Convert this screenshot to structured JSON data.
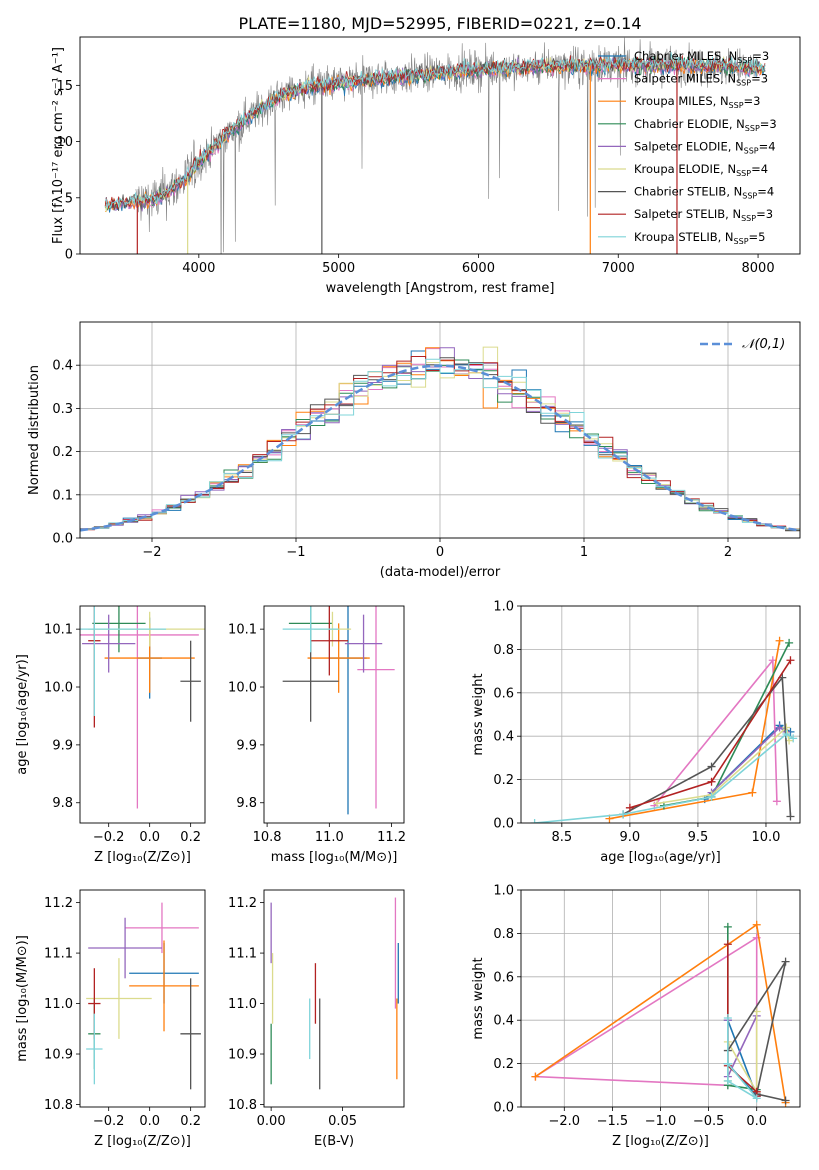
{
  "page": {
    "title": "PLATE=1180, MJD=52995, FIBERID=0221, z=0.14",
    "colors": {
      "Chabrier MILES": "#1f77b4",
      "Salpeter MILES": "#e377c2",
      "Kroupa MILES": "#ff7f0e",
      "Chabrier ELODIE": "#2e8b57",
      "Salpeter ELODIE": "#9467bd",
      "Kroupa ELODIE": "#dbdb8d",
      "Chabrier STELIB": "#555555",
      "Salpeter STELIB": "#b22222",
      "Kroupa STELIB": "#7fd4d9",
      "data": "#808080",
      "normal": "#5b8fd8"
    }
  },
  "chart_data": [
    {
      "id": "spectrum",
      "type": "line",
      "xlabel": "wavelength [Angstrom, rest frame]",
      "ylabel": "Flux [fλ10⁻¹⁷ erg cm⁻² s⁻¹ A⁻¹]",
      "xlim": [
        3150,
        8300
      ],
      "ylim": [
        0,
        19.3
      ],
      "xticks": [
        "4000",
        "5000",
        "6000",
        "7000",
        "8000"
      ],
      "yticks": [
        "0",
        "5",
        "10",
        "15"
      ],
      "legend": [
        {
          "name": "Chabrier MILES",
          "n_ssp": "=3"
        },
        {
          "name": "Salpeter MILES",
          "n_ssp": "=3"
        },
        {
          "name": "Kroupa MILES",
          "n_ssp": "=3"
        },
        {
          "name": "Chabrier ELODIE",
          "n_ssp": "=3"
        },
        {
          "name": "Salpeter ELODIE",
          "n_ssp": "=4"
        },
        {
          "name": "Kroupa ELODIE",
          "n_ssp": "=4"
        },
        {
          "name": "Chabrier STELIB",
          "n_ssp": "=4"
        },
        {
          "name": "Salpeter STELIB",
          "n_ssp": "=3"
        },
        {
          "name": "Kroupa STELIB",
          "n_ssp": "=5"
        }
      ],
      "legend_position": "right",
      "continuum_nodes": [
        [
          3350,
          4.3
        ],
        [
          3500,
          4.6
        ],
        [
          3700,
          4.9
        ],
        [
          3900,
          6.6
        ],
        [
          4000,
          8.2
        ],
        [
          4200,
          10.6
        ],
        [
          4400,
          12.6
        ],
        [
          4600,
          14.2
        ],
        [
          4800,
          14.9
        ],
        [
          5000,
          15.2
        ],
        [
          5300,
          15.6
        ],
        [
          5600,
          16.0
        ],
        [
          6000,
          16.4
        ],
        [
          6500,
          16.7
        ],
        [
          7000,
          16.8
        ],
        [
          7500,
          16.8
        ],
        [
          7800,
          16.7
        ],
        [
          8000,
          16.5
        ]
      ],
      "model_range": [
        3330,
        8050
      ],
      "data_range": [
        3550,
        8000
      ],
      "noise_level": 1.2
    },
    {
      "id": "residuals",
      "type": "histogram",
      "xlabel": "(data-model)/error",
      "ylabel": "Normed distribution",
      "xlim": [
        -2.5,
        2.5
      ],
      "ylim": [
        0,
        0.5
      ],
      "xticks": [
        "−2",
        "−1",
        "0",
        "1",
        "2"
      ],
      "yticks": [
        "0.0",
        "0.1",
        "0.2",
        "0.3",
        "0.4"
      ],
      "bin_width": 0.1,
      "legend": [
        "𝒩(0,1)"
      ],
      "legend_position": "upper right",
      "grid": true
    },
    {
      "id": "age-vs-Z",
      "type": "errorbar",
      "xlabel": "Z [log₁₀(Z/Z⊙)]",
      "ylabel": "age  [log₁₀(age/yr)]",
      "xlim": [
        -0.34,
        0.27
      ],
      "ylim": [
        9.765,
        10.14
      ],
      "xticks": [
        "−0.2",
        "0.0",
        "0.2"
      ],
      "yticks": [
        "9.8",
        "9.9",
        "10.0",
        "10.1"
      ],
      "points": [
        {
          "model": "Chabrier MILES",
          "x": 0.0,
          "xerr": 0.06,
          "y": 10.05,
          "yerr": 0.07
        },
        {
          "model": "Salpeter MILES",
          "x": -0.06,
          "xerr": 0.3,
          "y": 10.09,
          "yerr": 0.3
        },
        {
          "model": "Kroupa MILES",
          "x": 0.0,
          "xerr": 0.22,
          "y": 10.05,
          "yerr": 0.06
        },
        {
          "model": "Chabrier ELODIE",
          "x": -0.15,
          "xerr": 0.13,
          "y": 10.11,
          "yerr": 0.05
        },
        {
          "model": "Salpeter ELODIE",
          "x": -0.2,
          "xerr": 0.13,
          "y": 10.075,
          "yerr": 0.05
        },
        {
          "model": "Kroupa ELODIE",
          "x": 0.0,
          "xerr": 0.3,
          "y": 10.1,
          "yerr": 0.03
        },
        {
          "model": "Chabrier STELIB",
          "x": 0.2,
          "xerr": 0.05,
          "y": 10.01,
          "yerr": 0.07
        },
        {
          "model": "Salpeter STELIB",
          "x": -0.27,
          "xerr": 0.03,
          "y": 10.08,
          "yerr": 0.15
        },
        {
          "model": "Kroupa STELIB",
          "x": -0.27,
          "xerr": 0.35,
          "y": 10.1,
          "yerr": 0.15
        }
      ]
    },
    {
      "id": "age-vs-mass",
      "type": "errorbar",
      "xlabel": "mass [log₁₀(M/M⊙)]",
      "xlim": [
        10.79,
        11.24
      ],
      "ylim": [
        9.765,
        10.14
      ],
      "xticks": [
        "10.8",
        "11.0",
        "11.2"
      ],
      "yticks": [
        "9.8",
        "9.9",
        "10.0",
        "10.1"
      ],
      "points": [
        {
          "model": "Chabrier MILES",
          "x": 11.06,
          "xerr": 0.06,
          "y": 10.05,
          "yerr": 0.27
        },
        {
          "model": "Salpeter MILES",
          "x": 11.15,
          "xerr": 0.06,
          "y": 10.03,
          "yerr": 0.24
        },
        {
          "model": "Kroupa MILES",
          "x": 11.03,
          "xerr": 0.1,
          "y": 10.05,
          "yerr": 0.06
        },
        {
          "model": "Chabrier ELODIE",
          "x": 10.94,
          "xerr": 0.07,
          "y": 10.11,
          "yerr": 0.05
        },
        {
          "model": "Salpeter ELODIE",
          "x": 11.11,
          "xerr": 0.06,
          "y": 10.075,
          "yerr": 0.05
        },
        {
          "model": "Kroupa ELODIE",
          "x": 11.01,
          "xerr": 0.06,
          "y": 10.1,
          "yerr": 0.03
        },
        {
          "model": "Chabrier STELIB",
          "x": 10.94,
          "xerr": 0.09,
          "y": 10.01,
          "yerr": 0.07
        },
        {
          "model": "Salpeter STELIB",
          "x": 11.0,
          "xerr": 0.06,
          "y": 10.08,
          "yerr": 0.06
        },
        {
          "model": "Kroupa STELIB",
          "x": 10.94,
          "xerr": 0.09,
          "y": 10.1,
          "yerr": 0.04
        }
      ]
    },
    {
      "id": "weight-vs-age",
      "type": "line",
      "xlabel": "age  [log₁₀(age/yr)]",
      "ylabel": "mass weight",
      "xlim": [
        8.2,
        10.25
      ],
      "ylim": [
        0,
        1.0
      ],
      "xticks": [
        "8.5",
        "9.0",
        "9.5",
        "10.0"
      ],
      "yticks": [
        "0.0",
        "0.2",
        "0.4",
        "0.6",
        "0.8",
        "1.0"
      ],
      "grid": true,
      "series": [
        {
          "model": "Chabrier MILES",
          "x": [
            9.55,
            10.1,
            10.18
          ],
          "y": [
            0.11,
            0.45,
            0.42
          ]
        },
        {
          "model": "Salpeter MILES",
          "x": [
            9.18,
            10.05,
            10.08
          ],
          "y": [
            0.08,
            0.75,
            0.1
          ]
        },
        {
          "model": "Kroupa MILES",
          "x": [
            8.85,
            9.9,
            10.1
          ],
          "y": [
            0.02,
            0.14,
            0.84
          ]
        },
        {
          "model": "Chabrier ELODIE",
          "x": [
            9.25,
            9.6,
            10.17
          ],
          "y": [
            0.08,
            0.12,
            0.83
          ]
        },
        {
          "model": "Salpeter ELODIE",
          "x": [
            9.6,
            10.1,
            10.15
          ],
          "y": [
            0.14,
            0.44,
            0.42
          ]
        },
        {
          "model": "Kroupa ELODIE",
          "x": [
            9.2,
            9.6,
            10.15,
            10.17
          ],
          "y": [
            0.09,
            0.13,
            0.44,
            0.38
          ]
        },
        {
          "model": "Chabrier STELIB",
          "x": [
            8.95,
            9.6,
            10.12,
            10.18
          ],
          "y": [
            0.04,
            0.26,
            0.67,
            0.03
          ]
        },
        {
          "model": "Salpeter STELIB",
          "x": [
            9.0,
            9.6,
            10.18
          ],
          "y": [
            0.07,
            0.19,
            0.75
          ]
        },
        {
          "model": "Kroupa STELIB",
          "x": [
            8.3,
            8.95,
            9.6,
            10.15,
            10.2
          ],
          "y": [
            0.0,
            0.04,
            0.12,
            0.41,
            0.39
          ]
        }
      ]
    },
    {
      "id": "mass-vs-Z",
      "type": "errorbar",
      "xlabel": "Z [log₁₀(Z/Z⊙)]",
      "ylabel": "mass [log₁₀(M/M⊙)]",
      "xlim": [
        -0.34,
        0.27
      ],
      "ylim": [
        10.795,
        11.225
      ],
      "xticks": [
        "−0.2",
        "0.0",
        "0.2"
      ],
      "yticks": [
        "10.8",
        "10.9",
        "11.0",
        "11.1",
        "11.2"
      ],
      "points": [
        {
          "model": "Chabrier MILES",
          "x": 0.07,
          "xerr": 0.17,
          "y": 11.06,
          "yerr": 0.06
        },
        {
          "model": "Salpeter MILES",
          "x": 0.06,
          "xerr": 0.18,
          "y": 11.15,
          "yerr": 0.05
        },
        {
          "model": "Kroupa MILES",
          "x": 0.07,
          "xerr": 0.17,
          "y": 11.035,
          "yerr": 0.09
        },
        {
          "model": "Chabrier ELODIE",
          "x": -0.27,
          "xerr": 0.03,
          "y": 10.94,
          "yerr": 0.07
        },
        {
          "model": "Salpeter ELODIE",
          "x": -0.12,
          "xerr": 0.18,
          "y": 11.11,
          "yerr": 0.06
        },
        {
          "model": "Kroupa ELODIE",
          "x": -0.15,
          "xerr": 0.16,
          "y": 11.01,
          "yerr": 0.08
        },
        {
          "model": "Chabrier STELIB",
          "x": 0.2,
          "xerr": 0.05,
          "y": 10.94,
          "yerr": 0.11
        },
        {
          "model": "Salpeter STELIB",
          "x": -0.27,
          "xerr": 0.03,
          "y": 11.0,
          "yerr": 0.07
        },
        {
          "model": "Kroupa STELIB",
          "x": -0.27,
          "xerr": 0.04,
          "y": 10.91,
          "yerr": 0.07
        }
      ]
    },
    {
      "id": "mass-vs-ebv",
      "type": "errorbar",
      "xlabel": "E(B-V)",
      "xlim": [
        -0.005,
        0.093
      ],
      "ylim": [
        10.795,
        11.225
      ],
      "xticks": [
        "0.00",
        "0.05"
      ],
      "yticks": [
        "10.8",
        "10.9",
        "11.0",
        "11.1",
        "11.2"
      ],
      "points": [
        {
          "model": "Chabrier MILES",
          "x": 0.089,
          "y": 11.06,
          "yerr": 0.06
        },
        {
          "model": "Salpeter MILES",
          "x": 0.087,
          "y": 11.1,
          "yerr": 0.11
        },
        {
          "model": "Kroupa MILES",
          "x": 0.088,
          "y": 10.93,
          "yerr": 0.08
        },
        {
          "model": "Chabrier ELODIE",
          "x": 0.0,
          "y": 10.9,
          "yerr": 0.06
        },
        {
          "model": "Salpeter ELODIE",
          "x": 0.0,
          "y": 11.14,
          "yerr": 0.06
        },
        {
          "model": "Kroupa ELODIE",
          "x": 0.001,
          "y": 11.03,
          "yerr": 0.07
        },
        {
          "model": "Chabrier STELIB",
          "x": 0.034,
          "y": 10.92,
          "yerr": 0.09
        },
        {
          "model": "Salpeter STELIB",
          "x": 0.031,
          "y": 11.02,
          "yerr": 0.06
        },
        {
          "model": "Kroupa STELIB",
          "x": 0.027,
          "y": 10.95,
          "yerr": 0.06
        }
      ]
    },
    {
      "id": "weight-vs-Z",
      "type": "line",
      "xlabel": "Z [log₁₀(Z/Z⊙)]",
      "ylabel": "mass weight",
      "xlim": [
        -2.45,
        0.45
      ],
      "ylim": [
        0,
        1.0
      ],
      "xticks": [
        "−2.0",
        "−1.5",
        "−1.0",
        "−0.5",
        "0.0"
      ],
      "yticks": [
        "0.0",
        "0.2",
        "0.4",
        "0.6",
        "0.8",
        "1.0"
      ],
      "grid": true,
      "series": [
        {
          "model": "Chabrier MILES",
          "x": [
            -0.3,
            0.0,
            -0.3
          ],
          "y": [
            0.4,
            0.05,
            0.2
          ]
        },
        {
          "model": "Salpeter MILES",
          "x": [
            -0.3,
            -2.3,
            0.0,
            0.0
          ],
          "y": [
            0.1,
            0.14,
            0.78,
            0.05
          ]
        },
        {
          "model": "Kroupa MILES",
          "x": [
            -2.3,
            0.0,
            0.3
          ],
          "y": [
            0.14,
            0.84,
            0.02
          ]
        },
        {
          "model": "Chabrier ELODIE",
          "x": [
            -0.3,
            -0.3,
            0.0
          ],
          "y": [
            0.83,
            0.1,
            0.08
          ]
        },
        {
          "model": "Salpeter ELODIE",
          "x": [
            -0.3,
            -0.3,
            0.0
          ],
          "y": [
            0.4,
            0.14,
            0.42
          ]
        },
        {
          "model": "Kroupa ELODIE",
          "x": [
            0.0,
            0.0,
            -0.3,
            -0.3
          ],
          "y": [
            0.44,
            0.07,
            0.3,
            0.12
          ]
        },
        {
          "model": "Chabrier STELIB",
          "x": [
            0.3,
            0.0,
            0.3,
            -0.3
          ],
          "y": [
            0.03,
            0.06,
            0.67,
            0.26
          ]
        },
        {
          "model": "Salpeter STELIB",
          "x": [
            -0.3,
            -0.3,
            0.0,
            0.0
          ],
          "y": [
            0.75,
            0.19,
            0.07,
            0.05
          ]
        },
        {
          "model": "Kroupa STELIB",
          "x": [
            -0.3,
            -0.3,
            0.0,
            -0.3
          ],
          "y": [
            0.41,
            0.12,
            0.04,
            0.2
          ]
        }
      ]
    }
  ]
}
